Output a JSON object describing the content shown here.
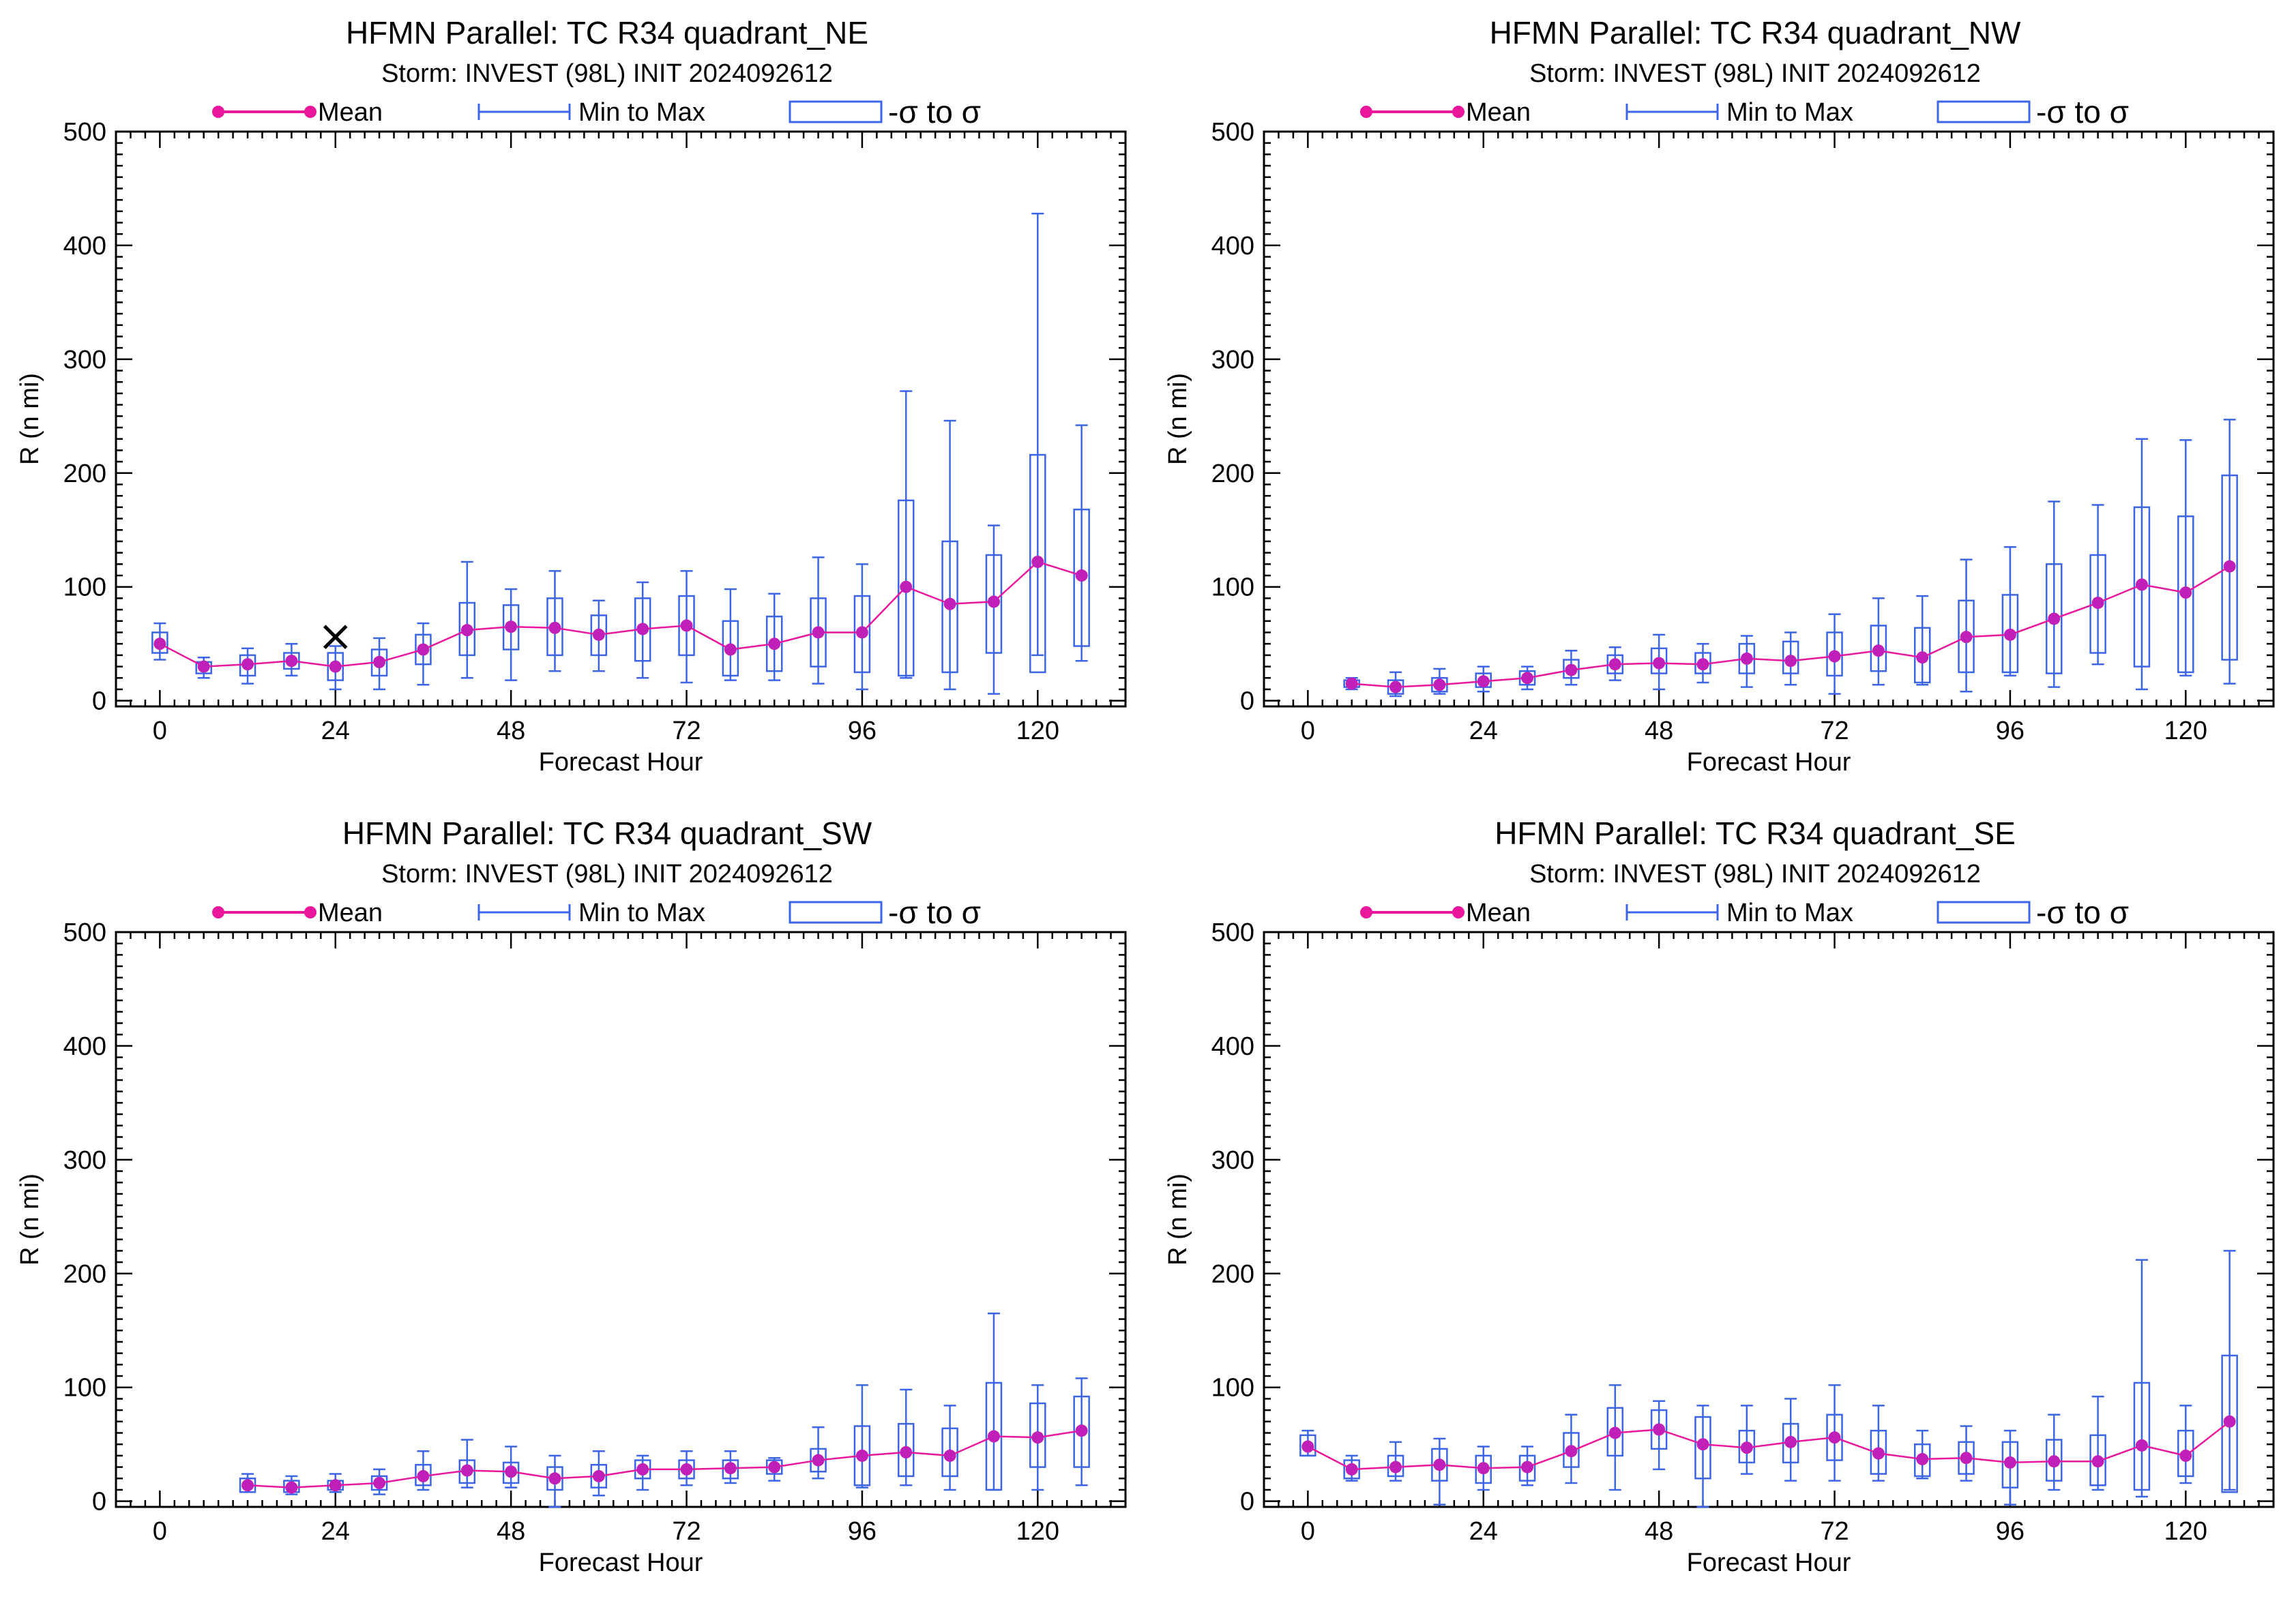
{
  "subtitle": "Storm: INVEST (98L) INIT 2024092612",
  "legend": {
    "mean": "Mean",
    "minmax": "Min to Max",
    "sigma": "-σ to σ"
  },
  "axes": {
    "xlabel": "Forecast Hour",
    "ylabel": "R (n mi)"
  },
  "colors": {
    "mean": "#e8179c",
    "mean_marker": "#c020b8",
    "box": "#3c64e6",
    "axis": "#000000"
  },
  "chart_data": [
    {
      "type": "box",
      "title": "HFMN Parallel: TC  R34 quadrant_NE",
      "xlim": [
        -6,
        132
      ],
      "ylim": [
        -5,
        500
      ],
      "xticks": [
        0,
        24,
        48,
        72,
        96,
        120
      ],
      "yticks": [
        0,
        100,
        200,
        300,
        400,
        500
      ],
      "series": [
        {
          "name": "Mean",
          "x": [
            0,
            6,
            12,
            18,
            24,
            30,
            36,
            42,
            48,
            54,
            60,
            66,
            72,
            78,
            84,
            90,
            96,
            102,
            108,
            114,
            120,
            126
          ],
          "values": [
            50,
            30,
            32,
            35,
            30,
            34,
            45,
            62,
            65,
            64,
            58,
            63,
            66,
            45,
            50,
            60,
            60,
            100,
            85,
            87,
            122,
            110
          ]
        },
        {
          "name": "Min to Max",
          "x": [
            0,
            6,
            12,
            18,
            24,
            30,
            36,
            42,
            48,
            54,
            60,
            66,
            72,
            78,
            84,
            90,
            96,
            102,
            108,
            114,
            120,
            126
          ],
          "min": [
            36,
            20,
            15,
            22,
            10,
            10,
            14,
            20,
            18,
            26,
            26,
            20,
            16,
            18,
            18,
            15,
            10,
            20,
            10,
            6,
            40,
            35
          ],
          "max": [
            68,
            38,
            46,
            50,
            48,
            55,
            68,
            122,
            98,
            114,
            88,
            104,
            114,
            98,
            94,
            126,
            120,
            272,
            246,
            154,
            428,
            242
          ]
        },
        {
          "name": "-σ to σ",
          "x": [
            0,
            6,
            12,
            18,
            24,
            30,
            36,
            42,
            48,
            54,
            60,
            66,
            72,
            78,
            84,
            90,
            96,
            102,
            108,
            114,
            120,
            126
          ],
          "low": [
            42,
            24,
            22,
            28,
            18,
            22,
            32,
            40,
            45,
            40,
            40,
            35,
            40,
            22,
            26,
            30,
            25,
            22,
            25,
            42,
            25,
            48
          ],
          "high": [
            60,
            34,
            40,
            42,
            42,
            45,
            58,
            86,
            84,
            90,
            75,
            90,
            92,
            70,
            74,
            90,
            92,
            176,
            140,
            128,
            216,
            168
          ]
        }
      ],
      "annotations": [
        {
          "marker": "x",
          "x": 24,
          "y": 56
        }
      ]
    },
    {
      "type": "box",
      "title": "HFMN Parallel: TC  R34 quadrant_NW",
      "xlim": [
        -6,
        132
      ],
      "ylim": [
        -5,
        500
      ],
      "xticks": [
        0,
        24,
        48,
        72,
        96,
        120
      ],
      "yticks": [
        0,
        100,
        200,
        300,
        400,
        500
      ],
      "series": [
        {
          "name": "Mean",
          "x": [
            6,
            12,
            18,
            24,
            30,
            36,
            42,
            48,
            54,
            60,
            66,
            72,
            78,
            84,
            90,
            96,
            102,
            108,
            114,
            120,
            126
          ],
          "values": [
            15,
            12,
            14,
            17,
            20,
            27,
            32,
            33,
            32,
            37,
            35,
            39,
            44,
            38,
            56,
            58,
            72,
            86,
            102,
            95,
            118
          ]
        },
        {
          "name": "Min to Max",
          "x": [
            6,
            12,
            18,
            24,
            30,
            36,
            42,
            48,
            54,
            60,
            66,
            72,
            78,
            84,
            90,
            96,
            102,
            108,
            114,
            120,
            126
          ],
          "min": [
            10,
            4,
            6,
            8,
            10,
            14,
            18,
            10,
            16,
            12,
            14,
            6,
            14,
            14,
            8,
            22,
            12,
            32,
            10,
            22,
            15
          ],
          "max": [
            20,
            25,
            28,
            30,
            30,
            44,
            47,
            58,
            50,
            57,
            60,
            76,
            90,
            92,
            124,
            135,
            175,
            172,
            230,
            229,
            247
          ]
        },
        {
          "name": "-σ to σ",
          "x": [
            6,
            12,
            18,
            24,
            30,
            36,
            42,
            48,
            54,
            60,
            66,
            72,
            78,
            84,
            90,
            96,
            102,
            108,
            114,
            120,
            126
          ],
          "low": [
            12,
            6,
            8,
            12,
            14,
            20,
            24,
            24,
            24,
            24,
            24,
            22,
            26,
            16,
            25,
            25,
            24,
            42,
            30,
            25,
            36
          ],
          "high": [
            18,
            18,
            20,
            24,
            26,
            36,
            40,
            46,
            42,
            50,
            52,
            60,
            66,
            64,
            88,
            93,
            120,
            128,
            170,
            162,
            198
          ]
        }
      ]
    },
    {
      "type": "box",
      "title": "HFMN Parallel: TC  R34 quadrant_SW",
      "xlim": [
        -6,
        132
      ],
      "ylim": [
        -5,
        500
      ],
      "xticks": [
        0,
        24,
        48,
        72,
        96,
        120
      ],
      "yticks": [
        0,
        100,
        200,
        300,
        400,
        500
      ],
      "series": [
        {
          "name": "Mean",
          "x": [
            12,
            18,
            24,
            30,
            36,
            42,
            48,
            54,
            60,
            66,
            72,
            78,
            84,
            90,
            96,
            102,
            108,
            114,
            120,
            126
          ],
          "values": [
            14,
            12,
            14,
            16,
            22,
            27,
            26,
            20,
            22,
            28,
            28,
            29,
            30,
            36,
            40,
            43,
            40,
            57,
            56,
            62
          ]
        },
        {
          "name": "Min to Max",
          "x": [
            12,
            18,
            24,
            30,
            36,
            42,
            48,
            54,
            60,
            66,
            72,
            78,
            84,
            90,
            96,
            102,
            108,
            114,
            120,
            126
          ],
          "min": [
            8,
            6,
            8,
            6,
            10,
            12,
            12,
            -5,
            5,
            10,
            14,
            16,
            18,
            20,
            12,
            14,
            10,
            10,
            10,
            14
          ],
          "max": [
            24,
            22,
            24,
            28,
            44,
            54,
            48,
            40,
            44,
            40,
            44,
            44,
            38,
            65,
            102,
            98,
            84,
            165,
            102,
            108
          ]
        },
        {
          "name": "-σ to σ",
          "x": [
            12,
            18,
            24,
            30,
            36,
            42,
            48,
            54,
            60,
            66,
            72,
            78,
            84,
            90,
            96,
            102,
            108,
            114,
            120,
            126
          ],
          "low": [
            8,
            8,
            10,
            10,
            14,
            16,
            16,
            10,
            12,
            20,
            20,
            20,
            24,
            26,
            14,
            22,
            22,
            10,
            30,
            30
          ],
          "high": [
            20,
            18,
            18,
            22,
            32,
            36,
            34,
            30,
            32,
            36,
            36,
            36,
            36,
            46,
            66,
            68,
            64,
            104,
            86,
            92
          ]
        }
      ]
    },
    {
      "type": "box",
      "title": "HFMN Parallel: TC  R34 quadrant_SE",
      "xlim": [
        -6,
        132
      ],
      "ylim": [
        -5,
        500
      ],
      "xticks": [
        0,
        24,
        48,
        72,
        96,
        120
      ],
      "yticks": [
        0,
        100,
        200,
        300,
        400,
        500
      ],
      "series": [
        {
          "name": "Mean",
          "x": [
            0,
            6,
            12,
            18,
            24,
            30,
            36,
            42,
            48,
            54,
            60,
            66,
            72,
            78,
            84,
            90,
            96,
            102,
            108,
            114,
            120,
            126
          ],
          "values": [
            48,
            28,
            30,
            32,
            29,
            30,
            44,
            60,
            63,
            50,
            47,
            52,
            56,
            42,
            37,
            38,
            34,
            35,
            35,
            49,
            40,
            70
          ]
        },
        {
          "name": "Min to Max",
          "x": [
            0,
            6,
            12,
            18,
            24,
            30,
            36,
            42,
            48,
            54,
            60,
            66,
            72,
            78,
            84,
            90,
            96,
            102,
            108,
            114,
            120,
            126
          ],
          "min": [
            40,
            18,
            18,
            -3,
            10,
            14,
            16,
            10,
            28,
            -5,
            24,
            18,
            18,
            18,
            20,
            18,
            -3,
            10,
            10,
            4,
            16,
            10
          ],
          "max": [
            62,
            40,
            52,
            55,
            48,
            48,
            76,
            102,
            88,
            84,
            84,
            90,
            102,
            84,
            62,
            66,
            62,
            76,
            92,
            212,
            84,
            220
          ]
        },
        {
          "name": "-σ to σ",
          "x": [
            0,
            6,
            12,
            18,
            24,
            30,
            36,
            42,
            48,
            54,
            60,
            66,
            72,
            78,
            84,
            90,
            96,
            102,
            108,
            114,
            120,
            126
          ],
          "low": [
            40,
            20,
            22,
            18,
            16,
            18,
            30,
            40,
            46,
            20,
            34,
            34,
            36,
            24,
            22,
            24,
            12,
            18,
            14,
            10,
            22,
            8
          ],
          "high": [
            58,
            36,
            40,
            46,
            40,
            40,
            60,
            82,
            80,
            74,
            62,
            68,
            76,
            62,
            50,
            52,
            52,
            54,
            58,
            104,
            62,
            128
          ]
        }
      ]
    }
  ]
}
